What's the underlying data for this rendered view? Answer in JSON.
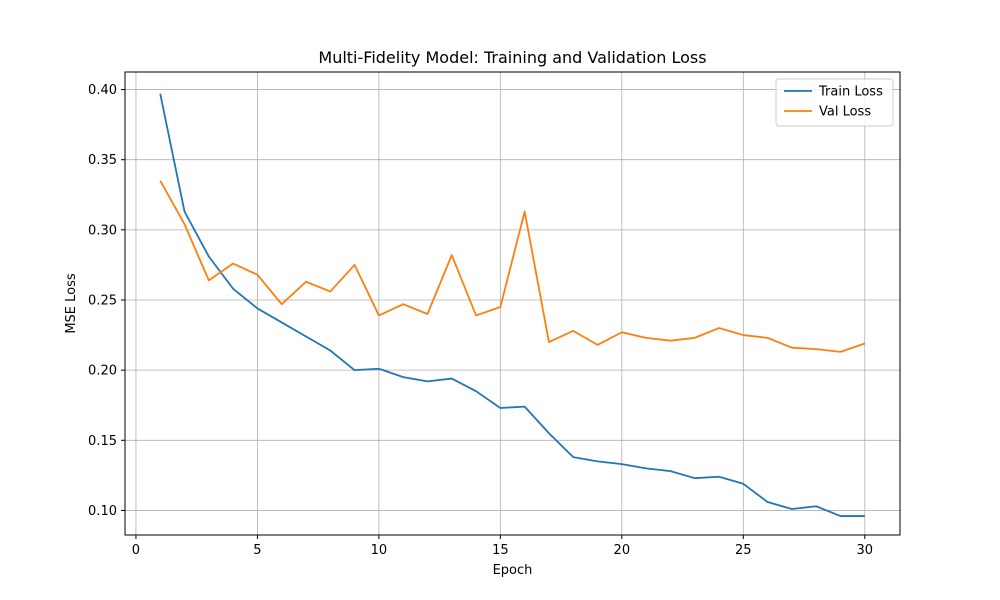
{
  "chart_data": {
    "type": "line",
    "title": "Multi-Fidelity Model: Training and Validation Loss",
    "xlabel": "Epoch",
    "ylabel": "MSE Loss",
    "xlim": [
      -0.45,
      31.45
    ],
    "ylim": [
      0.0825,
      0.4125
    ],
    "x_ticks": [
      0,
      5,
      10,
      15,
      20,
      25,
      30
    ],
    "y_ticks": [
      0.1,
      0.15,
      0.2,
      0.25,
      0.3,
      0.35,
      0.4
    ],
    "x_tick_labels": [
      "0",
      "5",
      "10",
      "15",
      "20",
      "25",
      "30"
    ],
    "y_tick_labels": [
      "0.10",
      "0.15",
      "0.20",
      "0.25",
      "0.30",
      "0.35",
      "0.40"
    ],
    "grid": true,
    "legend_position": "top-right",
    "x": [
      1,
      2,
      3,
      4,
      5,
      6,
      7,
      8,
      9,
      10,
      11,
      12,
      13,
      14,
      15,
      16,
      17,
      18,
      19,
      20,
      21,
      22,
      23,
      24,
      25,
      26,
      27,
      28,
      29,
      30
    ],
    "series": [
      {
        "name": "Train Loss",
        "color": "#1f77b4",
        "values": [
          0.397,
          0.313,
          0.281,
          0.258,
          0.244,
          0.234,
          0.224,
          0.214,
          0.2,
          0.201,
          0.195,
          0.192,
          0.194,
          0.185,
          0.173,
          0.174,
          0.155,
          0.138,
          0.135,
          0.133,
          0.13,
          0.128,
          0.123,
          0.124,
          0.119,
          0.106,
          0.101,
          0.103,
          0.096,
          0.096
        ]
      },
      {
        "name": "Val Loss",
        "color": "#ff7f0e",
        "values": [
          0.335,
          0.304,
          0.264,
          0.276,
          0.268,
          0.247,
          0.263,
          0.256,
          0.275,
          0.239,
          0.247,
          0.24,
          0.282,
          0.239,
          0.245,
          0.313,
          0.22,
          0.228,
          0.218,
          0.227,
          0.223,
          0.221,
          0.223,
          0.23,
          0.225,
          0.223,
          0.216,
          0.215,
          0.213,
          0.219
        ]
      }
    ]
  }
}
